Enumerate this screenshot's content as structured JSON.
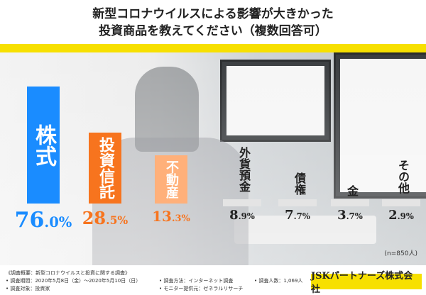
{
  "title_line1": "新型コロナウイルスによる影響が大きかった",
  "title_line2": "投資商品を教えてください（複数回答可）",
  "sample_size": "(n=850人)",
  "company": "JSKパートナーズ株式会社",
  "footer": {
    "overview": "《調査概要：新型コロナウイルスと投資に関する調査》",
    "period": "• 調査期間：2020年5月8日（金）〜2020年5月10日（日）",
    "target": "• 調査対象：投資家",
    "method": "• 調査方法：インターネット調査",
    "monitor": "• モニター提供元：ゼネラルリサーチ",
    "count": "• 調査人数：1,069人"
  },
  "colors": {
    "blue": "#1a8cff",
    "orange": "#f7741e",
    "light_orange": "#ffb07a",
    "yellow": "#f7e000"
  },
  "chart_data": {
    "type": "bar",
    "title": "新型コロナウイルスによる影響が大きかった投資商品を教えてください（複数回答可）",
    "categories": [
      "株式",
      "投資信託",
      "不動産",
      "外貨預金",
      "債権",
      "金",
      "その他"
    ],
    "values": [
      76.0,
      28.5,
      13.3,
      8.9,
      7.7,
      3.7,
      2.9
    ],
    "labels": [
      "76.0%",
      "28.5%",
      "13.3%",
      "8.9%",
      "7.7%",
      "3.7%",
      "2.9%"
    ],
    "unit": "%"
  }
}
